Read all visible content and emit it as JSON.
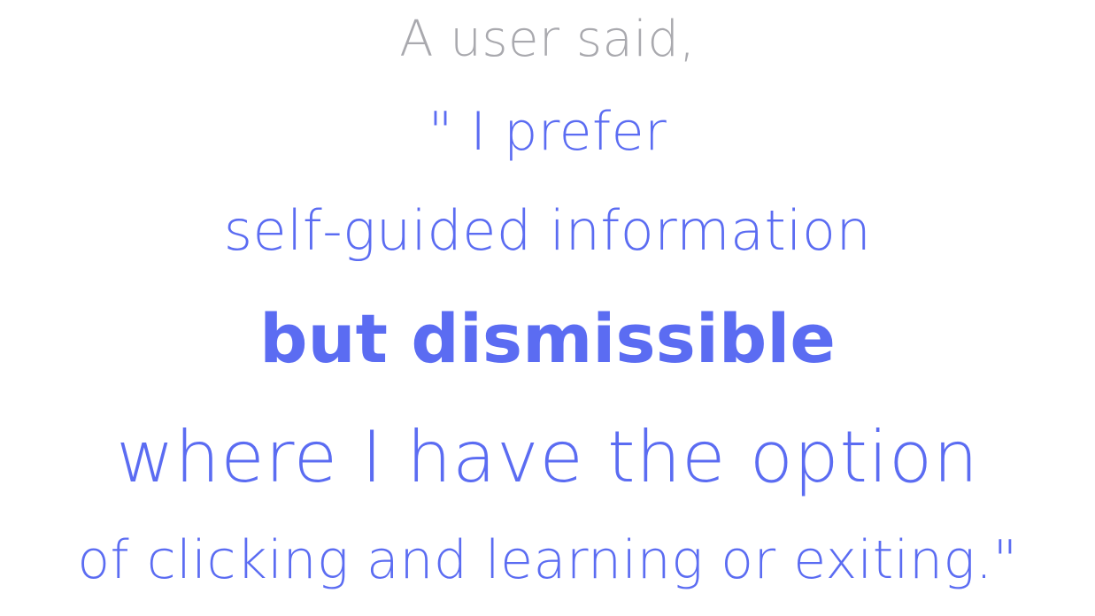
{
  "colors": {
    "intro_gray": "#a9a9ae",
    "accent_blue": "#5b6cf2",
    "background": "#ffffff"
  },
  "quote": {
    "intro": "A user said,",
    "line1": "\" I prefer",
    "line2": "self-guided information",
    "emphasis": "but dismissible",
    "line3": "where I have the option",
    "line4": "of clicking and learning or exiting.\""
  }
}
